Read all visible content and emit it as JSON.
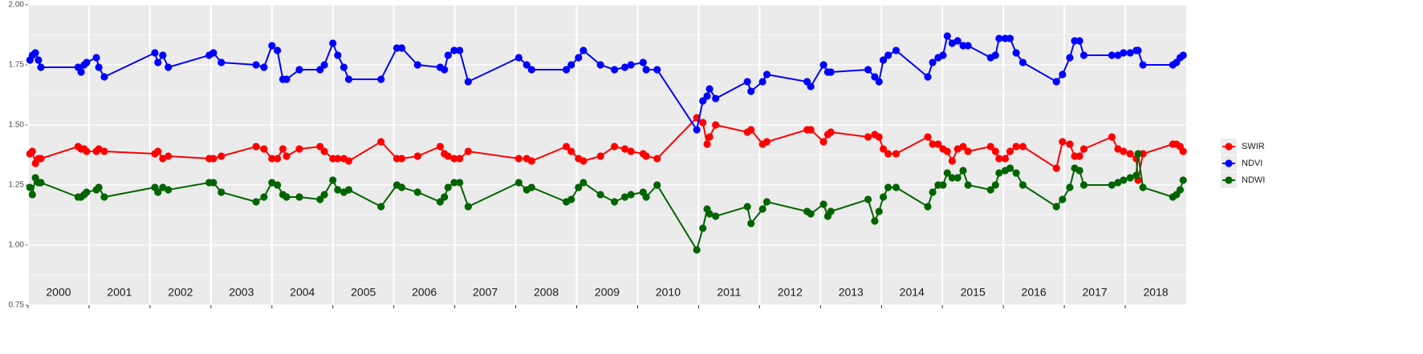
{
  "chart_data": {
    "type": "line",
    "x": [
      2000.03,
      2000.07,
      2000.12,
      2000.17,
      2000.21,
      2000.82,
      2000.87,
      2000.92,
      2000.96,
      2001.12,
      2001.16,
      2001.25,
      2002.08,
      2002.13,
      2002.21,
      2002.3,
      2002.97,
      2003.04,
      2003.17,
      2003.74,
      2003.87,
      2004.0,
      2004.09,
      2004.18,
      2004.24,
      2004.45,
      2004.79,
      2004.86,
      2005.0,
      2005.08,
      2005.18,
      2005.26,
      2005.79,
      2006.05,
      2006.13,
      2006.39,
      2006.76,
      2006.83,
      2006.89,
      2006.99,
      2007.08,
      2007.22,
      2008.05,
      2008.18,
      2008.26,
      2008.83,
      2008.91,
      2009.03,
      2009.11,
      2009.39,
      2009.62,
      2009.79,
      2009.89,
      2010.09,
      2010.14,
      2010.32,
      2010.97,
      2011.07,
      2011.14,
      2011.18,
      2011.28,
      2011.8,
      2011.86,
      2012.05,
      2012.12,
      2012.78,
      2012.84,
      2013.05,
      2013.12,
      2013.17,
      2013.78,
      2013.89,
      2013.96,
      2014.03,
      2014.11,
      2014.24,
      2014.76,
      2014.84,
      2014.93,
      2015.01,
      2015.08,
      2015.16,
      2015.25,
      2015.34,
      2015.42,
      2015.79,
      2015.87,
      2015.93,
      2016.03,
      2016.11,
      2016.21,
      2016.32,
      2016.87,
      2016.97,
      2017.09,
      2017.17,
      2017.25,
      2017.32,
      2017.78,
      2017.88,
      2017.97,
      2018.08,
      2018.18,
      2018.21,
      2018.29,
      2018.78,
      2018.84,
      2018.9,
      2018.95
    ],
    "series": [
      {
        "name": "SWIR",
        "color": "#ff0000",
        "values": [
          1.38,
          1.39,
          1.34,
          1.36,
          1.36,
          1.41,
          1.4,
          1.4,
          1.39,
          1.39,
          1.4,
          1.39,
          1.38,
          1.39,
          1.36,
          1.37,
          1.36,
          1.36,
          1.37,
          1.41,
          1.4,
          1.36,
          1.36,
          1.4,
          1.37,
          1.4,
          1.41,
          1.39,
          1.36,
          1.36,
          1.36,
          1.35,
          1.43,
          1.36,
          1.36,
          1.37,
          1.41,
          1.38,
          1.37,
          1.36,
          1.36,
          1.39,
          1.36,
          1.36,
          1.35,
          1.41,
          1.39,
          1.36,
          1.35,
          1.37,
          1.41,
          1.4,
          1.39,
          1.38,
          1.37,
          1.36,
          1.53,
          1.51,
          1.42,
          1.45,
          1.5,
          1.47,
          1.48,
          1.42,
          1.43,
          1.48,
          1.48,
          1.43,
          1.46,
          1.47,
          1.45,
          1.46,
          1.45,
          1.4,
          1.38,
          1.38,
          1.45,
          1.42,
          1.42,
          1.4,
          1.39,
          1.35,
          1.4,
          1.41,
          1.39,
          1.41,
          1.39,
          1.36,
          1.36,
          1.39,
          1.41,
          1.41,
          1.32,
          1.43,
          1.42,
          1.37,
          1.37,
          1.4,
          1.45,
          1.4,
          1.39,
          1.38,
          1.36,
          1.27,
          1.38,
          1.42,
          1.42,
          1.41,
          1.39
        ]
      },
      {
        "name": "NDVI",
        "color": "#0000ff",
        "values": [
          1.77,
          1.79,
          1.8,
          1.77,
          1.74,
          1.74,
          1.72,
          1.75,
          1.76,
          1.78,
          1.74,
          1.7,
          1.8,
          1.76,
          1.79,
          1.74,
          1.79,
          1.8,
          1.76,
          1.75,
          1.74,
          1.83,
          1.81,
          1.69,
          1.69,
          1.73,
          1.73,
          1.75,
          1.84,
          1.79,
          1.74,
          1.69,
          1.69,
          1.82,
          1.82,
          1.75,
          1.74,
          1.73,
          1.79,
          1.81,
          1.81,
          1.68,
          1.78,
          1.75,
          1.73,
          1.73,
          1.75,
          1.78,
          1.81,
          1.75,
          1.73,
          1.74,
          1.75,
          1.76,
          1.73,
          1.73,
          1.48,
          1.6,
          1.62,
          1.65,
          1.61,
          1.68,
          1.64,
          1.68,
          1.71,
          1.68,
          1.66,
          1.75,
          1.72,
          1.72,
          1.73,
          1.7,
          1.68,
          1.77,
          1.79,
          1.81,
          1.7,
          1.76,
          1.78,
          1.79,
          1.87,
          1.84,
          1.85,
          1.83,
          1.83,
          1.78,
          1.79,
          1.86,
          1.86,
          1.86,
          1.8,
          1.76,
          1.68,
          1.71,
          1.78,
          1.85,
          1.85,
          1.79,
          1.79,
          1.79,
          1.8,
          1.8,
          1.81,
          1.81,
          1.75,
          1.75,
          1.76,
          1.78,
          1.79
        ]
      },
      {
        "name": "NDWI",
        "color": "#006400",
        "values": [
          1.24,
          1.21,
          1.28,
          1.26,
          1.26,
          1.2,
          1.2,
          1.21,
          1.22,
          1.23,
          1.24,
          1.2,
          1.24,
          1.22,
          1.24,
          1.23,
          1.26,
          1.26,
          1.22,
          1.18,
          1.2,
          1.26,
          1.25,
          1.21,
          1.2,
          1.2,
          1.19,
          1.21,
          1.27,
          1.23,
          1.22,
          1.23,
          1.16,
          1.25,
          1.24,
          1.22,
          1.18,
          1.2,
          1.24,
          1.26,
          1.26,
          1.16,
          1.26,
          1.23,
          1.24,
          1.18,
          1.19,
          1.24,
          1.26,
          1.21,
          1.18,
          1.2,
          1.21,
          1.22,
          1.2,
          1.25,
          0.98,
          1.07,
          1.15,
          1.13,
          1.12,
          1.16,
          1.09,
          1.15,
          1.18,
          1.14,
          1.13,
          1.17,
          1.12,
          1.14,
          1.19,
          1.1,
          1.14,
          1.2,
          1.24,
          1.24,
          1.16,
          1.22,
          1.25,
          1.25,
          1.3,
          1.28,
          1.28,
          1.31,
          1.25,
          1.23,
          1.25,
          1.3,
          1.31,
          1.32,
          1.3,
          1.25,
          1.16,
          1.19,
          1.24,
          1.32,
          1.31,
          1.25,
          1.25,
          1.26,
          1.27,
          1.28,
          1.29,
          1.38,
          1.24,
          1.2,
          1.21,
          1.23,
          1.27
        ]
      }
    ],
    "year_labels": [
      "2000",
      "2001",
      "2002",
      "2003",
      "2004",
      "2005",
      "2006",
      "2007",
      "2008",
      "2009",
      "2010",
      "2011",
      "2012",
      "2013",
      "2014",
      "2015",
      "2016",
      "2017",
      "2018"
    ],
    "xlim": [
      2000,
      2019
    ],
    "xticks": [
      2000,
      2001,
      2002,
      2003,
      2004,
      2005,
      2006,
      2007,
      2008,
      2009,
      2010,
      2011,
      2012,
      2013,
      2014,
      2015,
      2016,
      2017,
      2018
    ],
    "ylim": [
      0.75,
      2.0
    ],
    "yticks": [
      0.75,
      {
        "value": 1.0,
        "label": "1.00"
      },
      1.25,
      {
        "value": 1.5,
        "label": "1.50"
      },
      1.75,
      {
        "value": 2.0,
        "label": "2.00"
      }
    ],
    "grid": true,
    "legend": "right"
  }
}
